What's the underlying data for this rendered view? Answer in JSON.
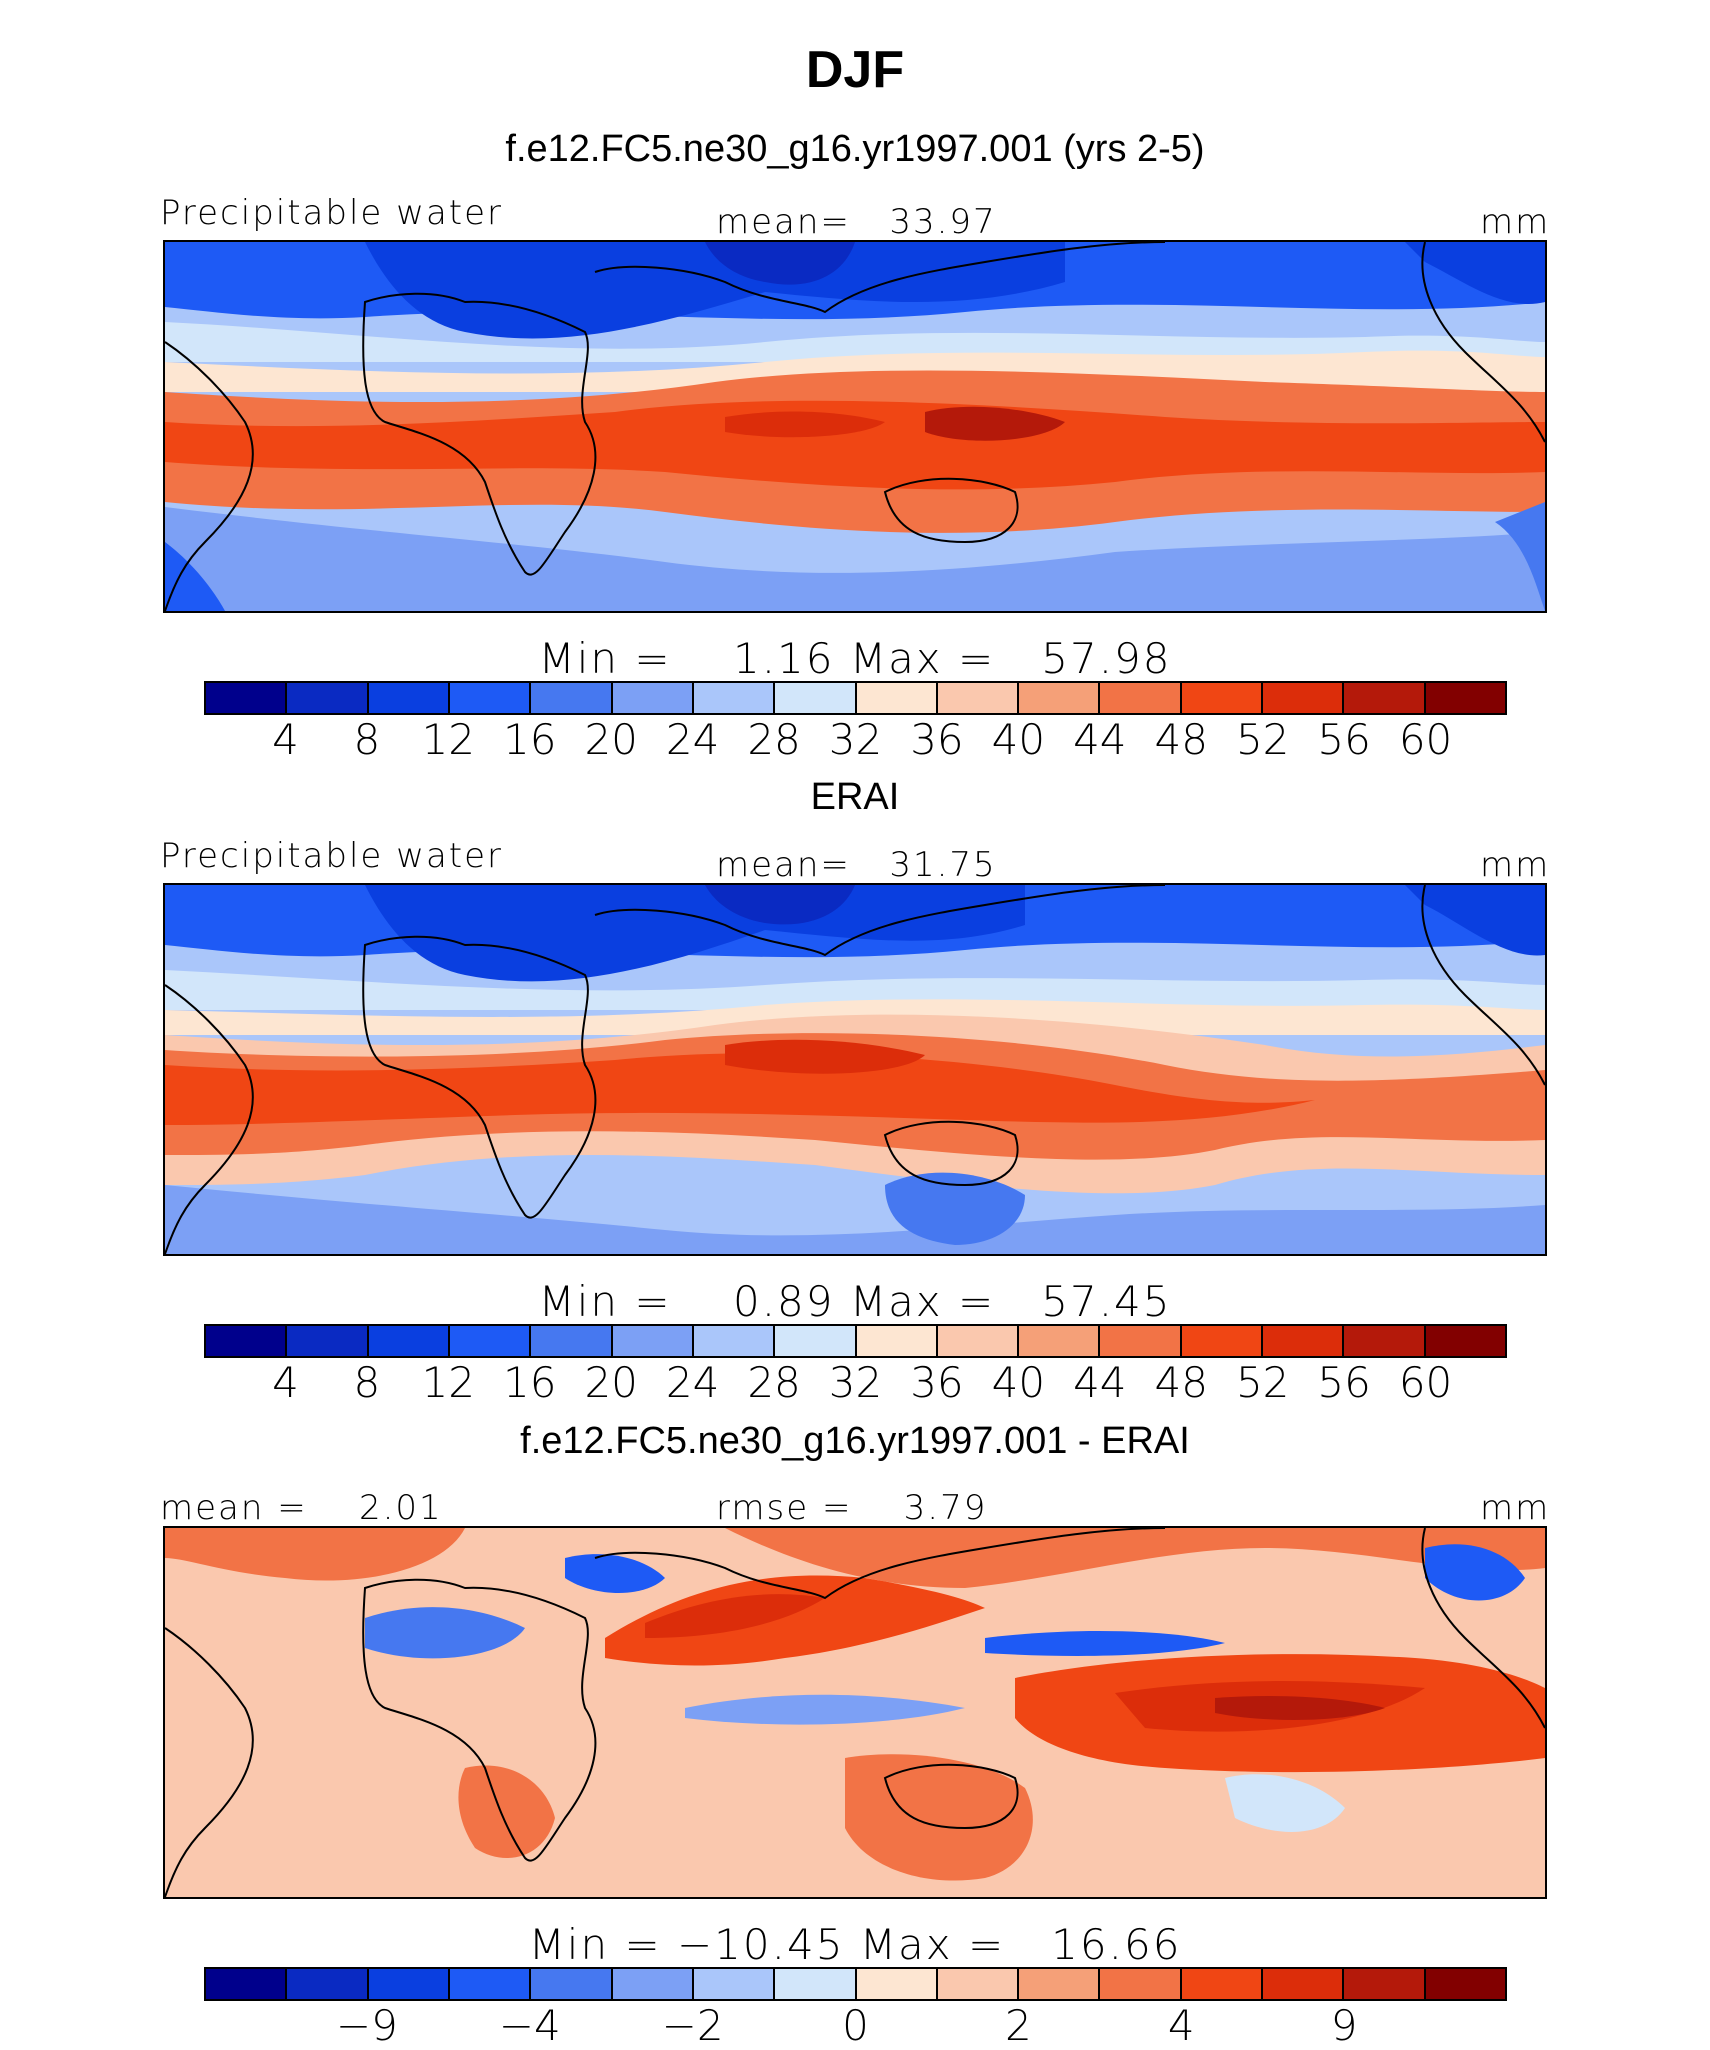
{
  "title": "DJF",
  "chart_data": [
    {
      "type": "heatmap",
      "title": "f.e12.FC5.ne30_g16.yr1997.001 (yrs 2-5)",
      "variable": "Precipitable water",
      "mean_label": "mean=   33.97",
      "units": "mm",
      "min": 1.16,
      "max": 57.98,
      "minmax_label": "Min =    1.16 Max =   57.98",
      "colorbar_levels": [
        "4",
        "8",
        "12",
        "16",
        "20",
        "24",
        "28",
        "32",
        "36",
        "40",
        "44",
        "48",
        "52",
        "56",
        "60"
      ],
      "colors": [
        "#00008c",
        "#0a2ac2",
        "#0a3fe0",
        "#1e5af5",
        "#4678f0",
        "#7ca0f5",
        "#aac6fa",
        "#d2e6fa",
        "#fde6d2",
        "#fac8ae",
        "#f5a078",
        "#f27346",
        "#f04614",
        "#dc2d0a",
        "#b4190a",
        "#820000"
      ]
    },
    {
      "type": "heatmap",
      "title": "ERAI",
      "variable": "Precipitable water",
      "mean_label": "mean=   31.75",
      "units": "mm",
      "min": 0.89,
      "max": 57.45,
      "minmax_label": "Min =    0.89 Max =   57.45",
      "colorbar_levels": [
        "4",
        "8",
        "12",
        "16",
        "20",
        "24",
        "28",
        "32",
        "36",
        "40",
        "44",
        "48",
        "52",
        "56",
        "60"
      ],
      "colors": [
        "#00008c",
        "#0a2ac2",
        "#0a3fe0",
        "#1e5af5",
        "#4678f0",
        "#7ca0f5",
        "#aac6fa",
        "#d2e6fa",
        "#fde6d2",
        "#fac8ae",
        "#f5a078",
        "#f27346",
        "#f04614",
        "#dc2d0a",
        "#b4190a",
        "#820000"
      ]
    },
    {
      "type": "heatmap",
      "title": "f.e12.FC5.ne30_g16.yr1997.001 - ERAI",
      "mean_label": "mean =    2.01",
      "rmse_label": "rmse =    3.79",
      "units": "mm",
      "min": -10.45,
      "max": 16.66,
      "minmax_label": "Min = −10.45 Max =   16.66",
      "colorbar_levels": [
        "−9",
        "−4",
        "−2",
        "0",
        "2",
        "4",
        "9"
      ],
      "colors": [
        "#00008c",
        "#0a2ac2",
        "#0a3fe0",
        "#1e5af5",
        "#4678f0",
        "#7ca0f5",
        "#aac6fa",
        "#d2e6fa",
        "#fde6d2",
        "#fac8ae",
        "#f5a078",
        "#f27346",
        "#f04614",
        "#dc2d0a",
        "#b4190a",
        "#820000"
      ]
    }
  ]
}
